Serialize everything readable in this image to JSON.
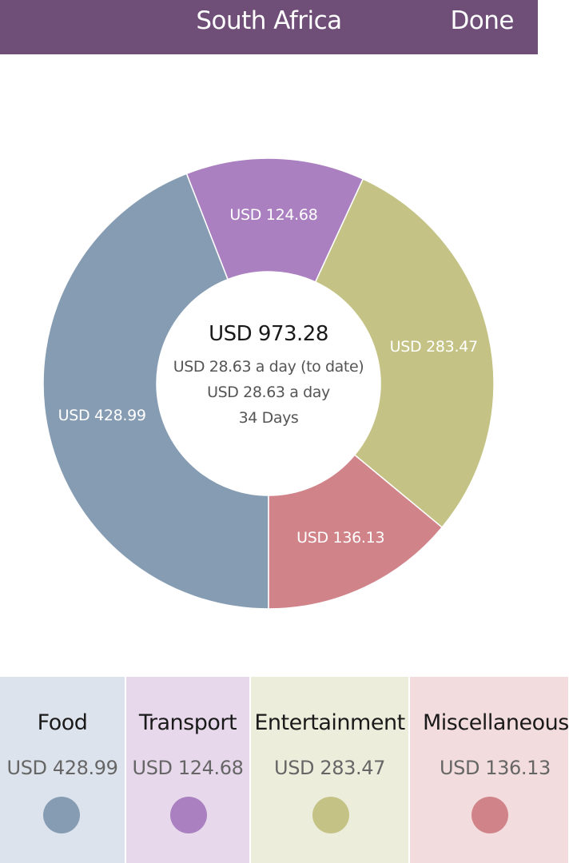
{
  "header": {
    "title": "South Africa",
    "done_label": "Done",
    "background": "#6f4e78"
  },
  "summary": {
    "total": "USD 973.28",
    "per_day_to_date": "USD 28.63 a day (to date)",
    "per_day": "USD 28.63 a day",
    "days": "34 Days"
  },
  "chart_data": {
    "type": "pie",
    "donut": true,
    "categories": [
      "Food",
      "Transport",
      "Entertainment",
      "Miscellaneous"
    ],
    "values": [
      428.99,
      124.68,
      283.47,
      136.13
    ],
    "labels": [
      "USD 428.99",
      "USD 124.68",
      "USD 283.47",
      "USD 136.13"
    ],
    "colors": [
      "#869cb2",
      "#ab80c0",
      "#c4c385",
      "#d0848a"
    ]
  },
  "categories": [
    {
      "name": "Food",
      "amount": "USD 428.99",
      "color": "#869cb2",
      "card_bg": "#dde3ec"
    },
    {
      "name": "Transport",
      "amount": "USD 124.68",
      "color": "#ab80c0",
      "card_bg": "#e8d8ec"
    },
    {
      "name": "Entertainment",
      "amount": "USD 283.47",
      "color": "#c4c385",
      "card_bg": "#ededdc"
    },
    {
      "name": "Miscellaneous",
      "amount": "USD 136.13",
      "color": "#d0848a",
      "card_bg": "#f3dcdd"
    }
  ]
}
